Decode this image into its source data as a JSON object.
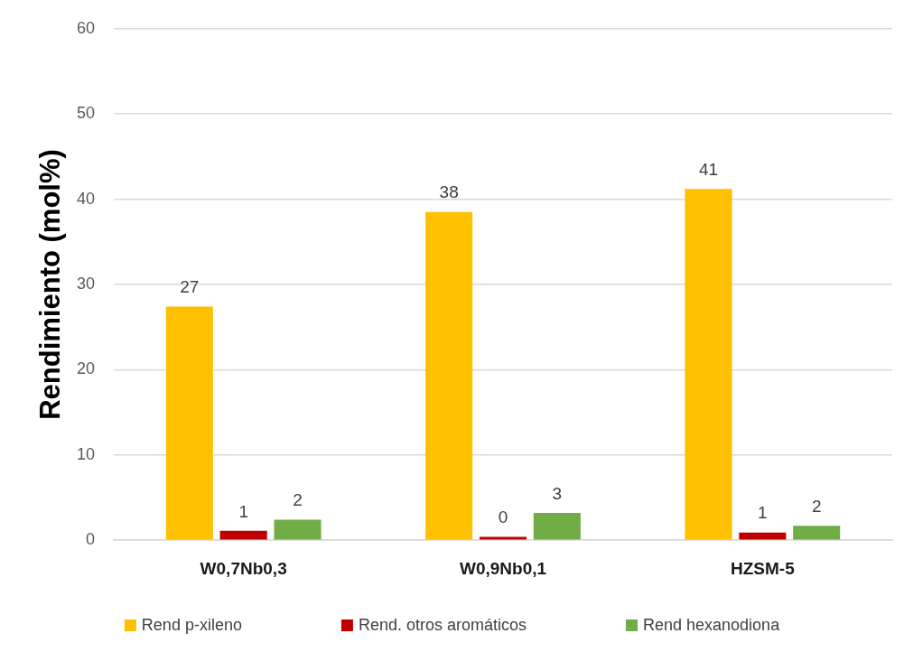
{
  "chart_data": {
    "type": "bar",
    "ylabel": "Rendimiento (mol%)",
    "categories": [
      "W0,7Nb0,3",
      "W0,9Nb0,1",
      "HZSM-5"
    ],
    "series": [
      {
        "name": "Rend p-xileno",
        "color": "#ffc000",
        "values": [
          27.4,
          38.5,
          41.2
        ],
        "value_labels": [
          "27",
          "38",
          "41"
        ]
      },
      {
        "name": "Rend. otros aromáticos",
        "color": "#c00000",
        "values": [
          1.1,
          0.4,
          0.9
        ],
        "value_labels": [
          "1",
          "0",
          "1"
        ]
      },
      {
        "name": "Rend hexanodiona",
        "color": "#70ad47",
        "values": [
          2.4,
          3.2,
          1.7
        ],
        "value_labels": [
          "2",
          "3",
          "2"
        ]
      }
    ],
    "ylim": [
      0,
      60
    ],
    "yticks": [
      0,
      10,
      20,
      30,
      40,
      50,
      60
    ],
    "grid": "y",
    "legend": "bottom"
  }
}
